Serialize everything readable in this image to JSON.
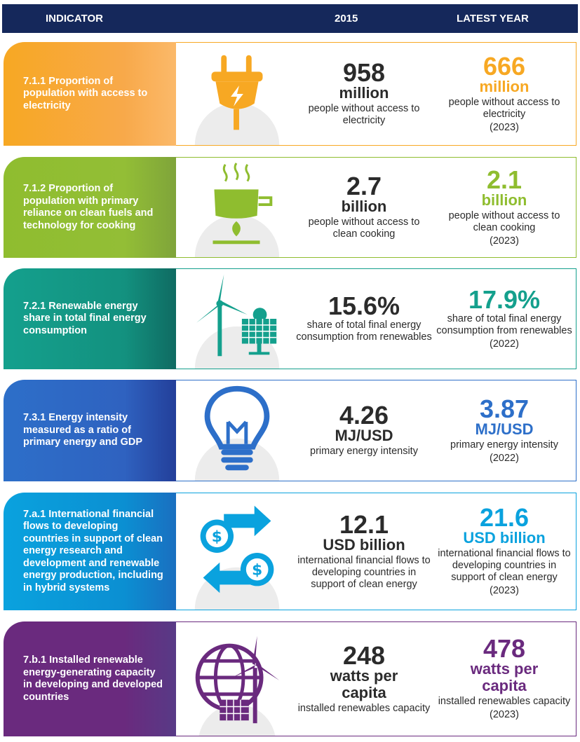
{
  "header": {
    "indicator": "INDICATOR",
    "year_2015": "2015",
    "latest_year": "LATEST YEAR"
  },
  "colors": {
    "header_bg": "#15285b",
    "row1": "#f7a823",
    "row2": "#8fbd2f",
    "row3": "#14a08d",
    "row4": "#2d6fc9",
    "row5": "#0aa2de",
    "row6": "#6a2a7e"
  },
  "rows": [
    {
      "indicator": "7.1.1 Proportion of population with access to electricity",
      "icon": "electric-plug-icon",
      "v2015": {
        "value": "958",
        "unit": "million",
        "desc": "people without access to electricity",
        "year": ""
      },
      "latest": {
        "value": "666",
        "unit": "million",
        "desc": "people without access to electricity",
        "year": "(2023)"
      }
    },
    {
      "indicator": "7.1.2 Proportion of population with primary reliance on clean fuels and technology for cooking",
      "icon": "cooking-pot-stove-icon",
      "v2015": {
        "value": "2.7",
        "unit": "billion",
        "desc": "people without access to clean cooking",
        "year": ""
      },
      "latest": {
        "value": "2.1",
        "unit": "billion",
        "desc": "people without access to clean cooking",
        "year": "(2023)"
      }
    },
    {
      "indicator": "7.2.1 Renewable energy share in total final energy consumption",
      "icon": "wind-turbine-solar-panel-icon",
      "v2015": {
        "value": "15.6%",
        "unit": "",
        "desc": "share of total final energy consumption from renewables",
        "year": ""
      },
      "latest": {
        "value": "17.9%",
        "unit": "",
        "desc": "share of total final energy consumption from renewables",
        "year": "(2022)"
      }
    },
    {
      "indicator": "7.3.1 Energy intensity measured as a ratio of primary energy and GDP",
      "icon": "light-bulb-icon",
      "v2015": {
        "value": "4.26",
        "unit": "MJ/USD",
        "desc": "primary energy intensity",
        "year": ""
      },
      "latest": {
        "value": "3.87",
        "unit": "MJ/USD",
        "desc": "primary energy intensity",
        "year": "(2022)"
      }
    },
    {
      "indicator": "7.a.1 International financial flows to developing countries in support of clean energy research and development and renewable energy production, including in hybrid systems",
      "icon": "money-flow-arrows-icon",
      "v2015": {
        "value": "12.1",
        "unit": "USD billion",
        "desc": "international financial flows to developing countries in support of clean energy",
        "year": ""
      },
      "latest": {
        "value": "21.6",
        "unit": "USD billion",
        "desc": "international financial flows to developing countries in support of clean energy",
        "year": "(2023)"
      }
    },
    {
      "indicator": "7.b.1 Installed renewable energy-generating capacity in developing and developed countries",
      "icon": "globe-renewables-icon",
      "v2015": {
        "value": "248",
        "unit": "watts per capita",
        "desc": "installed renewables capacity",
        "year": ""
      },
      "latest": {
        "value": "478",
        "unit": "watts per capita",
        "desc": "installed renewables capacity",
        "year": "(2023)"
      }
    }
  ]
}
